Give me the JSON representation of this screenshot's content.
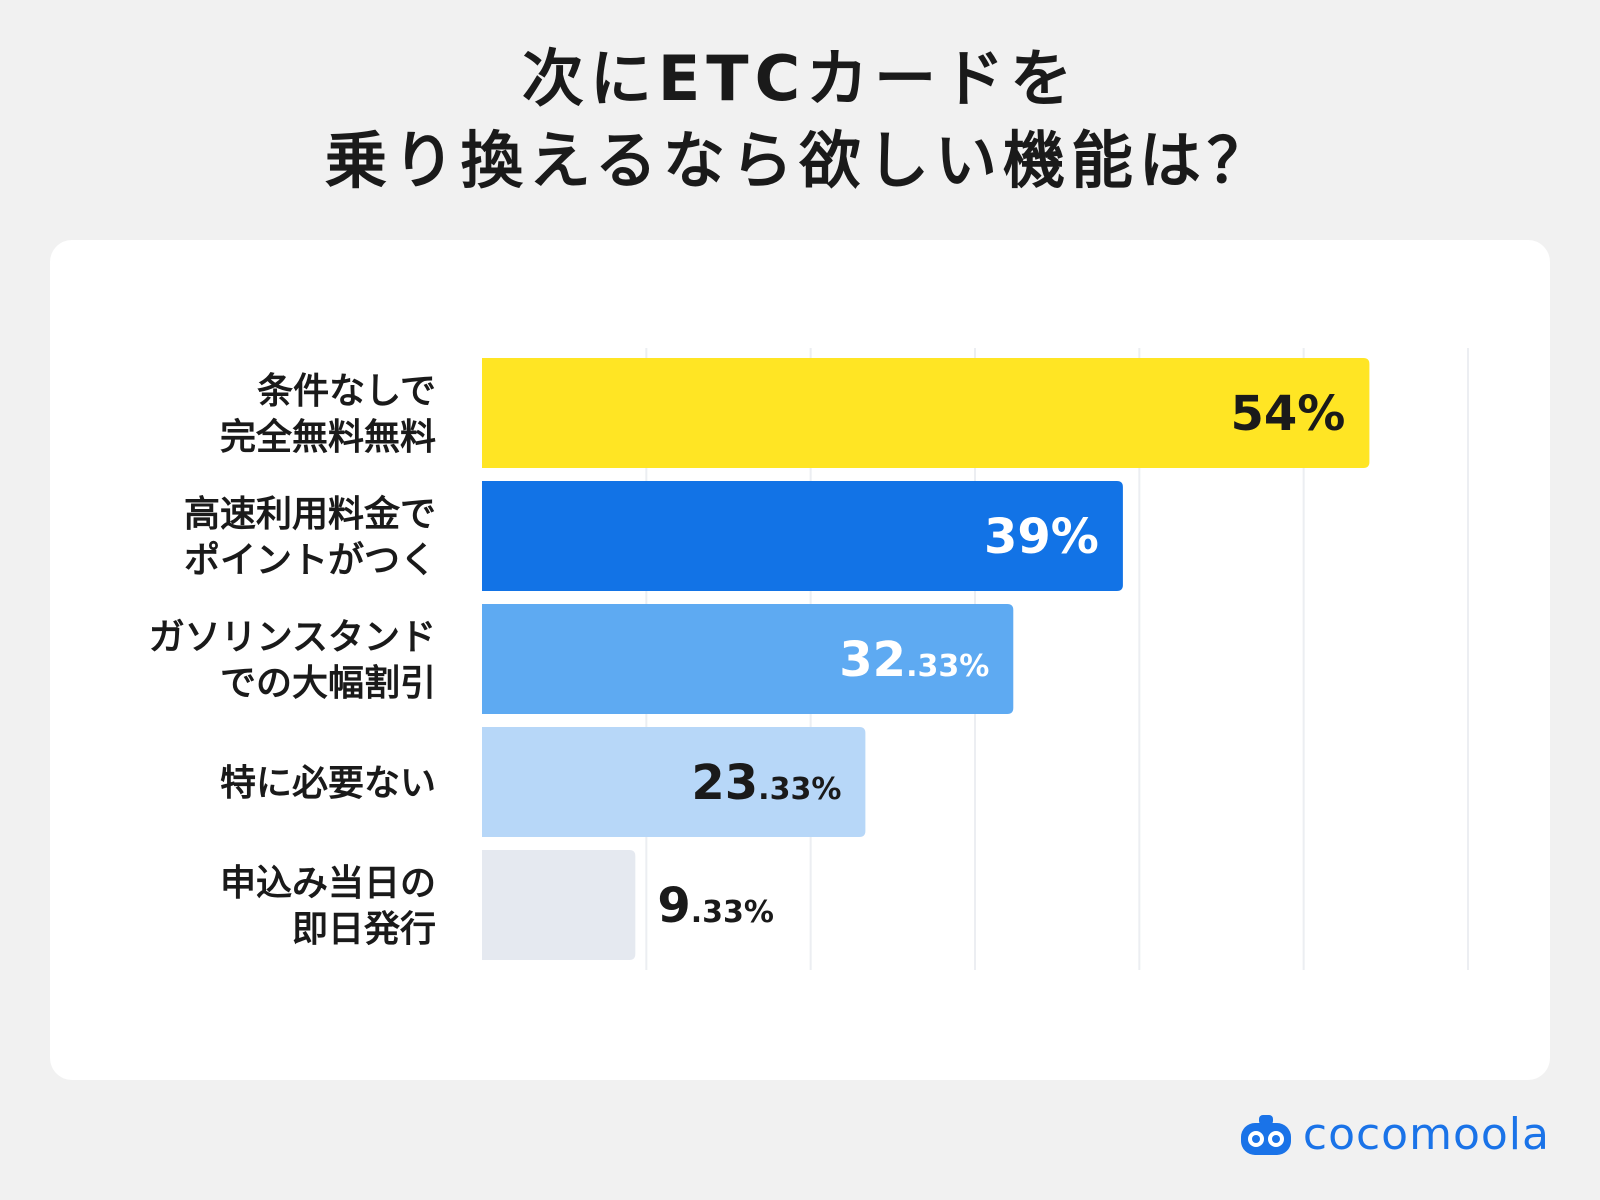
{
  "title_line1": "次にETCカードを",
  "title_line2": "乗り換えるなら欲しい機能は？",
  "brand": "cocomoola",
  "chart_data": {
    "type": "bar",
    "orientation": "horizontal",
    "categories": [
      [
        "条件なしで",
        "完全無料無料"
      ],
      [
        "高速利用料金で",
        "ポイントがつく"
      ],
      [
        "ガソリンスタンド",
        "での大幅割引"
      ],
      [
        "特に必要ない"
      ],
      [
        "申込み当日の",
        "即日発行"
      ]
    ],
    "values": [
      54,
      39,
      32.33,
      23.33,
      9.33
    ],
    "value_labels": [
      {
        "main": "54%",
        "sub": ""
      },
      {
        "main": "39%",
        "sub": ""
      },
      {
        "main": "32",
        "sub": ".33%"
      },
      {
        "main": "23",
        "sub": ".33%"
      },
      {
        "main": "9",
        "sub": ".33%"
      }
    ],
    "colors": [
      "#ffe524",
      "#1273e6",
      "#5eaaf2",
      "#b7d7f8",
      "#e5e9f0"
    ],
    "label_colors": [
      "#1a1a1a",
      "#ffffff",
      "#ffffff",
      "#1a1a1a",
      "#1a1a1a"
    ],
    "xlim": [
      0,
      60
    ],
    "grid": true
  }
}
